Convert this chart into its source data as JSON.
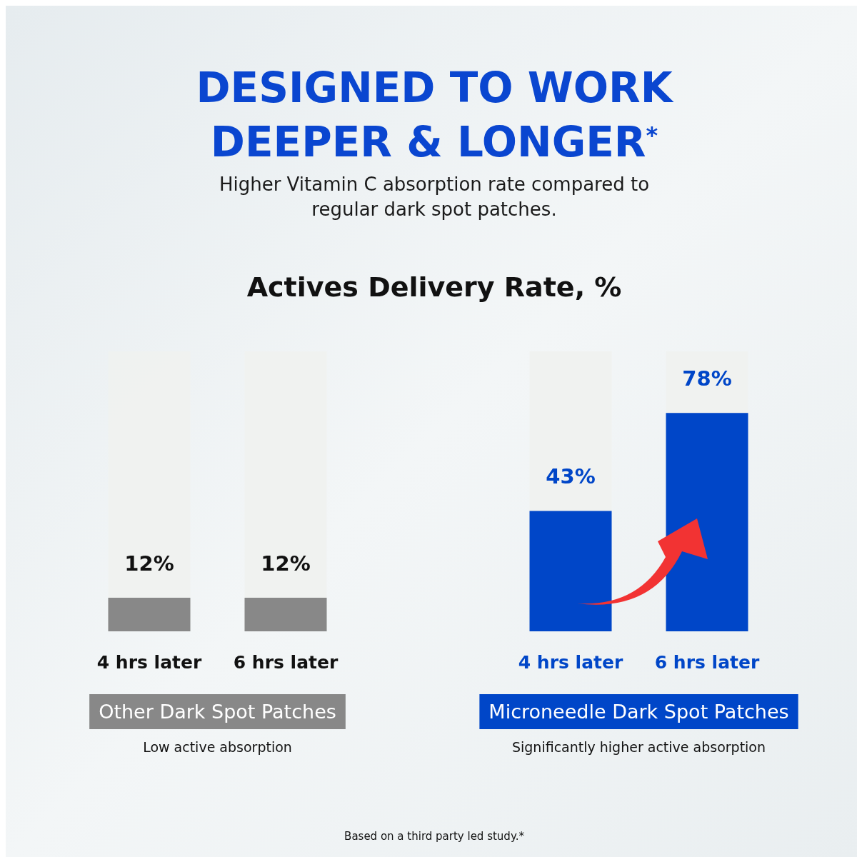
{
  "chart_data": {
    "type": "bar",
    "title": "DESIGNED TO WORK DEEPER & LONGER$^{*}$",
    "subtitle": "Higher Vitamin C absorption rate compared to regular dark spot patches.",
    "ylabel": "Actives Delivery Rate, %",
    "categories": [
      "4 hrs later",
      "6 hrs later",
      "4 hrs later",
      "6 hrs later"
    ],
    "series": [
      {
        "name": "Other Dark Spot Patches",
        "color": "#888888",
        "values": [
          12,
          12,
          null,
          null
        ],
        "value_labels": [
          "12%",
          "12%",
          null,
          null
        ]
      },
      {
        "name": "Microneedle Dark Spot Patches",
        "color": "#0046c8",
        "values": [
          null,
          null,
          43,
          78
        ],
        "value_labels": [
          null,
          null,
          "43%",
          "78%"
        ]
      }
    ],
    "ylim": [
      0,
      100
    ],
    "tick_labels": "x",
    "legend": "bottom",
    "annotations": [
      "Low active absorption",
      "Significantly higher active absorption",
      "Based on a third party led study.*"
    ]
  }
}
